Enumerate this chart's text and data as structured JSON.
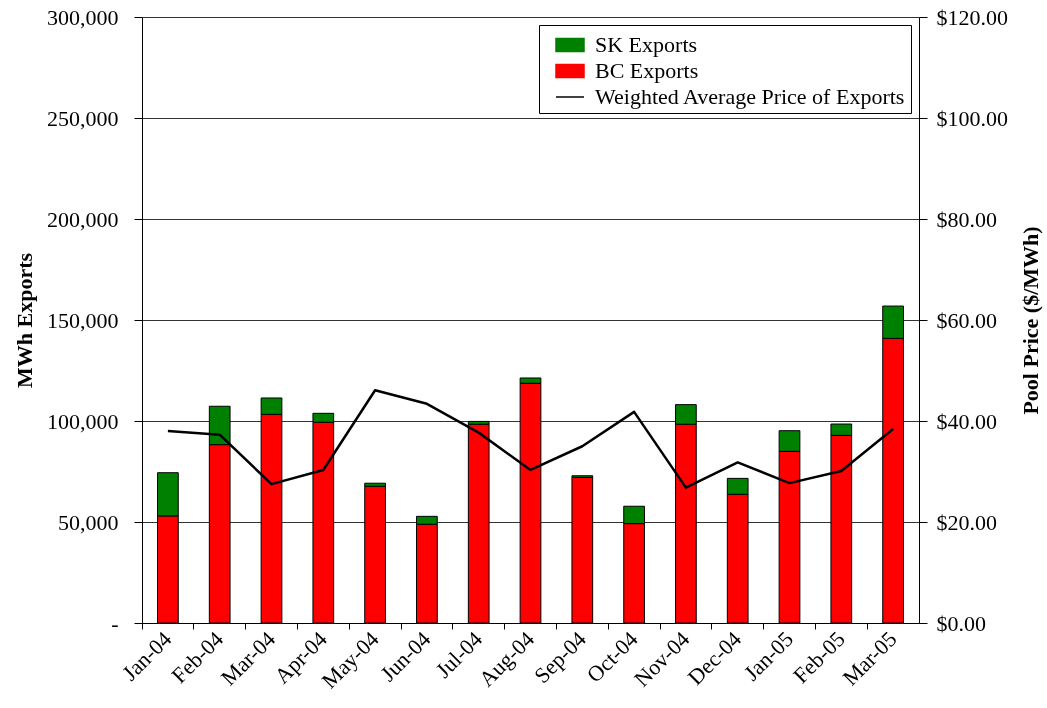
{
  "chart_data": {
    "type": "bar",
    "stacked": true,
    "categories": [
      "Jan-04",
      "Feb-04",
      "Mar-04",
      "Apr-04",
      "May-04",
      "Jun-04",
      "Jul-04",
      "Aug-04",
      "Sep-04",
      "Oct-04",
      "Nov-04",
      "Dec-04",
      "Jan-05",
      "Feb-05",
      "Mar-05"
    ],
    "ylabel": "MWh Exports",
    "y2label": "Pool Price ($/MWh)",
    "ylim": [
      0,
      300000
    ],
    "yticks": [
      {
        "value": 0,
        "label": "-"
      },
      {
        "value": 50000,
        "label": "50,000"
      },
      {
        "value": 100000,
        "label": "100,000"
      },
      {
        "value": 150000,
        "label": "150,000"
      },
      {
        "value": 200000,
        "label": "200,000"
      },
      {
        "value": 250000,
        "label": "250,000"
      },
      {
        "value": 300000,
        "label": "300,000"
      }
    ],
    "y2lim": [
      0,
      120
    ],
    "y2ticks": [
      {
        "value": 0,
        "label": "$0.00"
      },
      {
        "value": 20,
        "label": "$20.00"
      },
      {
        "value": 40,
        "label": "$40.00"
      },
      {
        "value": 60,
        "label": "$60.00"
      },
      {
        "value": 80,
        "label": "$80.00"
      },
      {
        "value": 100,
        "label": "$100.00"
      },
      {
        "value": 120,
        "label": "$120.00"
      }
    ],
    "grid": "y",
    "legend": "top right",
    "series": [
      {
        "name": "BC Exports",
        "color": "#ff0000",
        "values": [
          53000,
          88300,
          103300,
          99400,
          67700,
          48900,
          98400,
          118700,
          72100,
          49200,
          98400,
          63700,
          85000,
          92900,
          140900
        ]
      },
      {
        "name": "SK Exports",
        "color": "#008000",
        "values": [
          21400,
          19000,
          8100,
          4400,
          1500,
          3900,
          1400,
          2600,
          800,
          8600,
          9700,
          7900,
          10200,
          5600,
          16000
        ]
      },
      {
        "name": "Weighted Average Price of Exports",
        "type": "line",
        "axis": "y2",
        "color": "#000000",
        "values": [
          38.0,
          37.3,
          27.5,
          30.3,
          46.1,
          43.4,
          37.7,
          30.3,
          35.0,
          41.8,
          26.8,
          31.8,
          27.7,
          30.1,
          38.4
        ]
      }
    ]
  }
}
